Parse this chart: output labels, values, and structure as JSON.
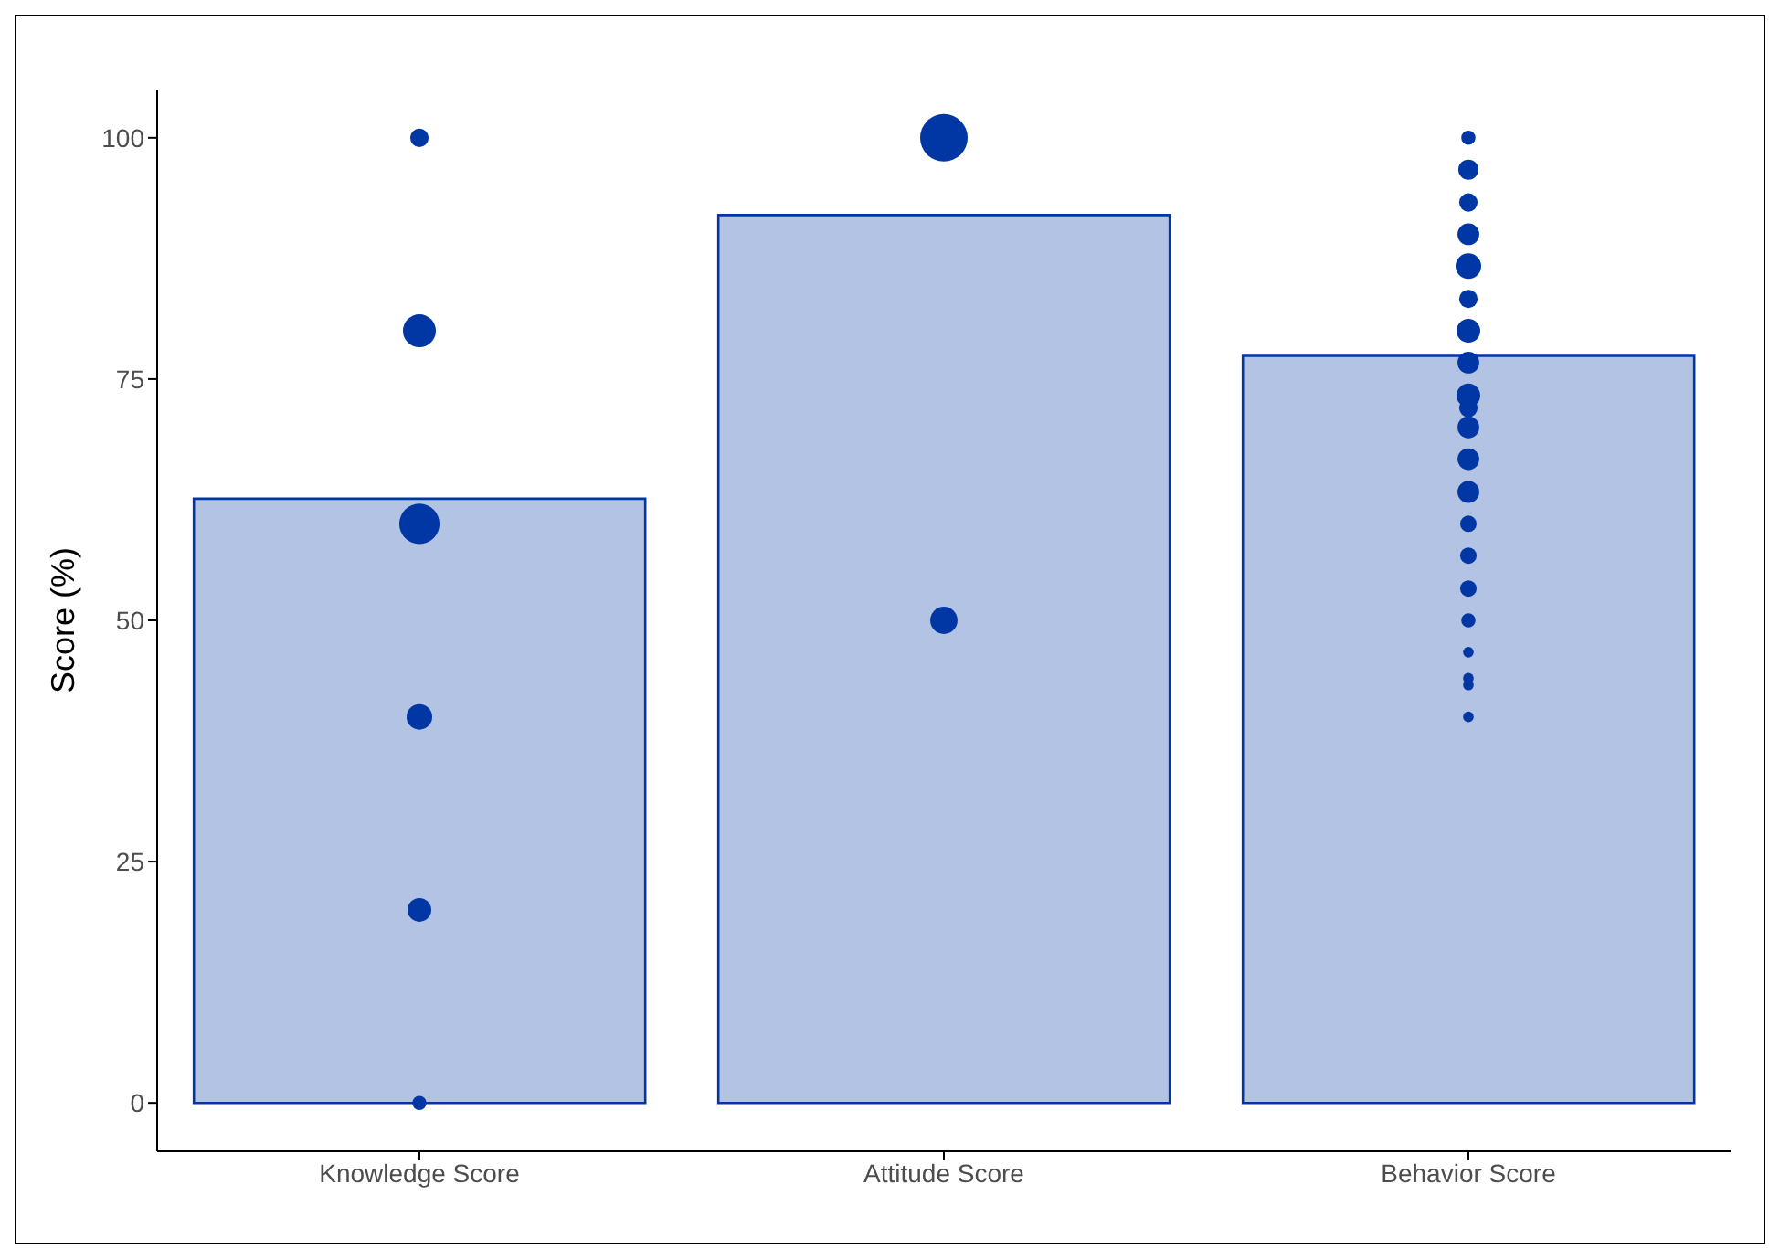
{
  "chart_data": {
    "type": "bar",
    "ylabel": "Score (%)",
    "categories": [
      "Knowledge Score",
      "Attitude Score",
      "Behavior Score"
    ],
    "series": [
      {
        "color": "#b3c3e3",
        "values": [
          62.6,
          92,
          77.4
        ]
      },
      {
        "type": "bubble",
        "color": "#0037a5",
        "x": [
          "Knowledge Score",
          "Knowledge Score",
          "Knowledge Score",
          "Knowledge Score",
          "Knowledge Score",
          "Knowledge Score",
          "Attitude Score",
          "Attitude Score",
          "Behavior Score",
          "Behavior Score",
          "Behavior Score",
          "Behavior Score",
          "Behavior Score",
          "Behavior Score",
          "Behavior Score",
          "Behavior Score",
          "Behavior Score",
          "Behavior Score",
          "Behavior Score",
          "Behavior Score",
          "Behavior Score",
          "Behavior Score",
          "Behavior Score",
          "Behavior Score",
          "Behavior Score",
          "Behavior Score",
          "Behavior Score",
          "Behavior Score",
          "Behavior Score"
        ],
        "values": [
          100,
          80,
          60,
          40,
          20,
          0,
          100,
          50,
          100,
          96.7,
          93.3,
          90,
          86.7,
          83.3,
          80,
          76.7,
          73.3,
          72,
          70,
          66.7,
          63.3,
          60,
          56.7,
          53.3,
          50,
          46.7,
          44,
          43.3,
          40
        ],
        "sizes": [
          0.15,
          0.48,
          0.72,
          0.29,
          0.25,
          0.09,
          1,
          0.33,
          0.09,
          0.18,
          0.15,
          0.21,
          0.29,
          0.15,
          0.25,
          0.21,
          0.25,
          0.15,
          0.21,
          0.21,
          0.21,
          0.12,
          0.12,
          0.12,
          0.09,
          0.05,
          0.05,
          0.05,
          0.05
        ]
      }
    ],
    "ylim": [
      -5,
      105
    ],
    "yticks": [
      0,
      25,
      50,
      75,
      100
    ]
  }
}
